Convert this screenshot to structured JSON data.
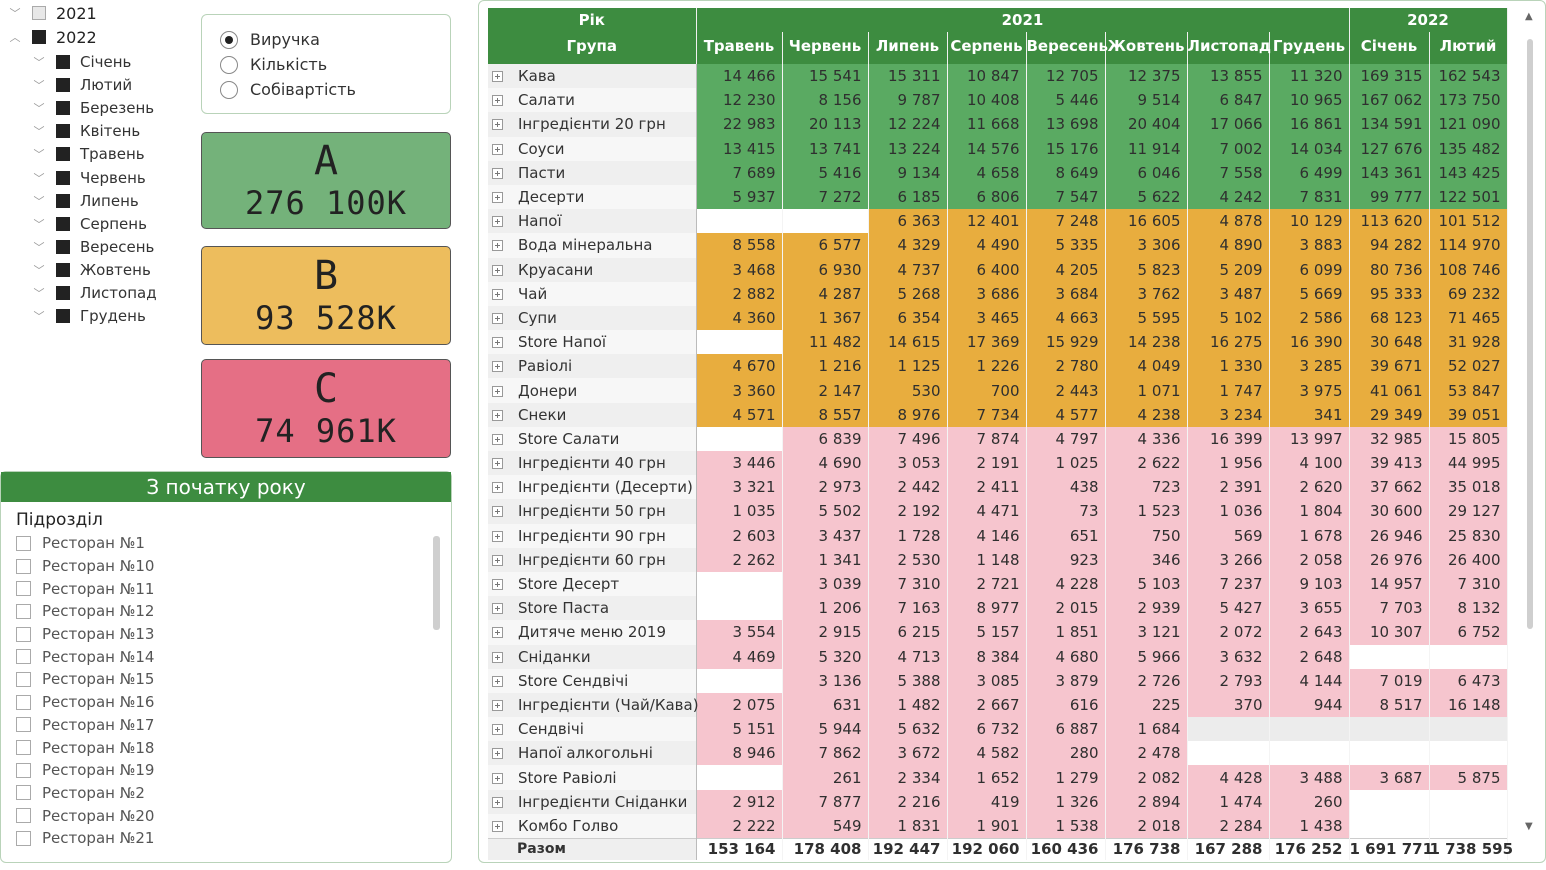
{
  "year_slicer": {
    "years": [
      {
        "label": "2021",
        "state": "partial",
        "expanded": false
      },
      {
        "label": "2022",
        "state": "filled",
        "expanded": true
      }
    ],
    "months": [
      "Січень",
      "Лютий",
      "Березень",
      "Квітень",
      "Травень",
      "Червень",
      "Липень",
      "Серпень",
      "Вересень",
      "Жовтень",
      "Листопад",
      "Грудень"
    ]
  },
  "measure": {
    "options": [
      "Виручка",
      "Кількість",
      "Собівартість"
    ],
    "selected": "Виручка"
  },
  "cards": {
    "a": {
      "label": "A",
      "value": "276 100K",
      "color": "#74b27a"
    },
    "b": {
      "label": "B",
      "value": "93 528K",
      "color": "#edbd5d"
    },
    "c": {
      "label": "C",
      "value": "74 961K",
      "color": "#e56f85"
    }
  },
  "restaurant_slicer": {
    "header": "З початку року",
    "subtitle": "Підрозділ",
    "items": [
      "Ресторан №1",
      "Ресторан №10",
      "Ресторан №11",
      "Ресторан №12",
      "Ресторан №13",
      "Ресторан №14",
      "Ресторан №15",
      "Ресторан №16",
      "Ресторан №17",
      "Ресторан №18",
      "Ресторан №19",
      "Ресторан №2",
      "Ресторан №20",
      "Ресторан №21"
    ]
  },
  "matrix": {
    "row_header_1": "Рік",
    "row_header_2": "Група",
    "year_headers": [
      "2021",
      "2022"
    ],
    "months": [
      "Травень",
      "Червень",
      "Липень",
      "Серпень",
      "Вересень",
      "Жовтень",
      "Листопад",
      "Грудень",
      "Січень",
      "Лютий"
    ],
    "rows": [
      {
        "name": "Кава",
        "cls": "A",
        "values": [
          "14 466",
          "15 541",
          "15 311",
          "10 847",
          "12 705",
          "12 375",
          "13 855",
          "11 320",
          "169 315",
          "162 543"
        ]
      },
      {
        "name": "Салати",
        "cls": "A",
        "values": [
          "12 230",
          "8 156",
          "9 787",
          "10 408",
          "5 446",
          "9 514",
          "6 847",
          "10 965",
          "167 062",
          "173 750"
        ]
      },
      {
        "name": "Інгредієнти 20 грн",
        "cls": "A",
        "values": [
          "22 983",
          "20 113",
          "12 224",
          "11 668",
          "13 698",
          "20 404",
          "17 066",
          "16 861",
          "134 591",
          "121 090"
        ]
      },
      {
        "name": "Соуси",
        "cls": "A",
        "values": [
          "13 415",
          "13 741",
          "13 224",
          "14 576",
          "15 176",
          "11 914",
          "7 002",
          "14 034",
          "127 676",
          "135 482"
        ]
      },
      {
        "name": "Пасти",
        "cls": "A",
        "values": [
          "7 689",
          "5 416",
          "9 134",
          "4 658",
          "8 649",
          "6 046",
          "7 558",
          "6 499",
          "143 361",
          "143 425"
        ]
      },
      {
        "name": "Десерти",
        "cls": "A",
        "values": [
          "5 937",
          "7 272",
          "6 185",
          "6 806",
          "7 547",
          "5 622",
          "4 242",
          "7 831",
          "99 777",
          "122 501"
        ]
      },
      {
        "name": "Напої",
        "cls": "B",
        "values": [
          "",
          "",
          "6 363",
          "12 401",
          "7 248",
          "16 605",
          "4 878",
          "10 129",
          "113 620",
          "101 512"
        ]
      },
      {
        "name": "Вода мінеральна",
        "cls": "B",
        "values": [
          "8 558",
          "6 577",
          "4 329",
          "4 490",
          "5 335",
          "3 306",
          "4 890",
          "3 883",
          "94 282",
          "114 970"
        ]
      },
      {
        "name": "Круасани",
        "cls": "B",
        "values": [
          "3 468",
          "6 930",
          "4 737",
          "6 400",
          "4 205",
          "5 823",
          "5 209",
          "6 099",
          "80 736",
          "108 746"
        ]
      },
      {
        "name": "Чай",
        "cls": "B",
        "values": [
          "2 882",
          "4 287",
          "5 268",
          "3 686",
          "3 684",
          "3 762",
          "3 487",
          "5 669",
          "95 333",
          "69 232"
        ]
      },
      {
        "name": "Супи",
        "cls": "B",
        "values": [
          "4 360",
          "1 367",
          "6 354",
          "3 465",
          "4 663",
          "5 595",
          "5 102",
          "2 586",
          "68 123",
          "71 465"
        ]
      },
      {
        "name": "Store Напої",
        "cls": "B",
        "values": [
          "",
          "11 482",
          "14 615",
          "17 369",
          "15 929",
          "14 238",
          "16 275",
          "16 390",
          "30 648",
          "31 928"
        ]
      },
      {
        "name": "Равіолі",
        "cls": "B",
        "values": [
          "4 670",
          "1 216",
          "1 125",
          "1 226",
          "2 780",
          "4 049",
          "1 330",
          "3 285",
          "39 671",
          "52 027"
        ]
      },
      {
        "name": "Донери",
        "cls": "B",
        "values": [
          "3 360",
          "2 147",
          "530",
          "700",
          "2 443",
          "1 071",
          "1 747",
          "3 975",
          "41 061",
          "53 847"
        ]
      },
      {
        "name": "Снеки",
        "cls": "B",
        "values": [
          "4 571",
          "8 557",
          "8 976",
          "7 734",
          "4 577",
          "4 238",
          "3 234",
          "341",
          "29 349",
          "39 051"
        ]
      },
      {
        "name": "Store Салати",
        "cls": "C",
        "values": [
          "",
          "6 839",
          "7 496",
          "7 874",
          "4 797",
          "4 336",
          "16 399",
          "13 997",
          "32 985",
          "15 805"
        ]
      },
      {
        "name": "Інгредієнти 40 грн",
        "cls": "C",
        "values": [
          "3 446",
          "4 690",
          "3 053",
          "2 191",
          "1 025",
          "2 622",
          "1 956",
          "4 100",
          "39 413",
          "44 995"
        ]
      },
      {
        "name": "Інгредієнти (Десерти)",
        "cls": "C",
        "values": [
          "3 321",
          "2 973",
          "2 442",
          "2 411",
          "438",
          "723",
          "2 391",
          "2 620",
          "37 662",
          "35 018"
        ]
      },
      {
        "name": "Інгредієнти 50 грн",
        "cls": "C",
        "values": [
          "1 035",
          "5 502",
          "2 192",
          "4 471",
          "73",
          "1 523",
          "1 036",
          "1 804",
          "30 600",
          "29 127"
        ]
      },
      {
        "name": "Інгредієнти 90 грн",
        "cls": "C",
        "values": [
          "2 603",
          "3 437",
          "1 728",
          "4 146",
          "651",
          "750",
          "569",
          "1 678",
          "26 946",
          "25 830"
        ]
      },
      {
        "name": "Інгредієнти 60 грн",
        "cls": "C",
        "values": [
          "2 262",
          "1 341",
          "2 530",
          "1 148",
          "923",
          "346",
          "3 266",
          "2 058",
          "26 976",
          "26 400"
        ]
      },
      {
        "name": "Store Десерт",
        "cls": "C",
        "values": [
          "",
          "3 039",
          "7 310",
          "2 721",
          "4 228",
          "5 103",
          "7 237",
          "9 103",
          "14 957",
          "7 310"
        ]
      },
      {
        "name": "Store Паста",
        "cls": "C",
        "values": [
          "",
          "1 206",
          "7 163",
          "8 977",
          "2 015",
          "2 939",
          "5 427",
          "3 655",
          "7 703",
          "8 132"
        ]
      },
      {
        "name": "Дитяче меню 2019",
        "cls": "C",
        "values": [
          "3 554",
          "2 915",
          "6 215",
          "5 157",
          "1 851",
          "3 121",
          "2 072",
          "2 643",
          "10 307",
          "6 752"
        ]
      },
      {
        "name": "Сніданки",
        "cls": "C",
        "values": [
          "4 469",
          "5 320",
          "4 713",
          "8 384",
          "4 680",
          "5 966",
          "3 632",
          "2 648",
          "",
          ""
        ]
      },
      {
        "name": "Store Сендвічі",
        "cls": "C",
        "values": [
          "",
          "3 136",
          "5 388",
          "3 085",
          "3 879",
          "2 726",
          "2 793",
          "4 144",
          "7 019",
          "6 473"
        ]
      },
      {
        "name": "Інгредієнти (Чай/Кава)",
        "cls": "C",
        "values": [
          "2 075",
          "631",
          "1 482",
          "2 667",
          "616",
          "225",
          "370",
          "944",
          "8 517",
          "16 148"
        ]
      },
      {
        "name": "Сендвічі",
        "cls": "C",
        "values": [
          "5 151",
          "5 944",
          "5 632",
          "6 732",
          "6 887",
          "1 684",
          "",
          "",
          "",
          ""
        ]
      },
      {
        "name": "Напої алкогольні",
        "cls": "C",
        "values": [
          "8 946",
          "7 862",
          "3 672",
          "4 582",
          "280",
          "2 478",
          "",
          "",
          "",
          ""
        ]
      },
      {
        "name": "Store Равіолі",
        "cls": "C",
        "values": [
          "",
          "261",
          "2 334",
          "1 652",
          "1 279",
          "2 082",
          "4 428",
          "3 488",
          "3 687",
          "5 875"
        ]
      },
      {
        "name": "Інгредієнти Сніданки",
        "cls": "C",
        "values": [
          "2 912",
          "7 877",
          "2 216",
          "419",
          "1 326",
          "2 894",
          "1 474",
          "260",
          "",
          ""
        ]
      },
      {
        "name": "Комбо Голво",
        "cls": "C",
        "values": [
          "2 222",
          "549",
          "1 831",
          "1 901",
          "1 538",
          "2 018",
          "2 284",
          "1 438",
          "",
          ""
        ]
      }
    ],
    "total_label": "Разом",
    "totals": [
      "153 164",
      "178 408",
      "192 447",
      "192 060",
      "160 436",
      "176 738",
      "167 288",
      "176 252",
      "1 691 771",
      "1 738 595"
    ]
  }
}
